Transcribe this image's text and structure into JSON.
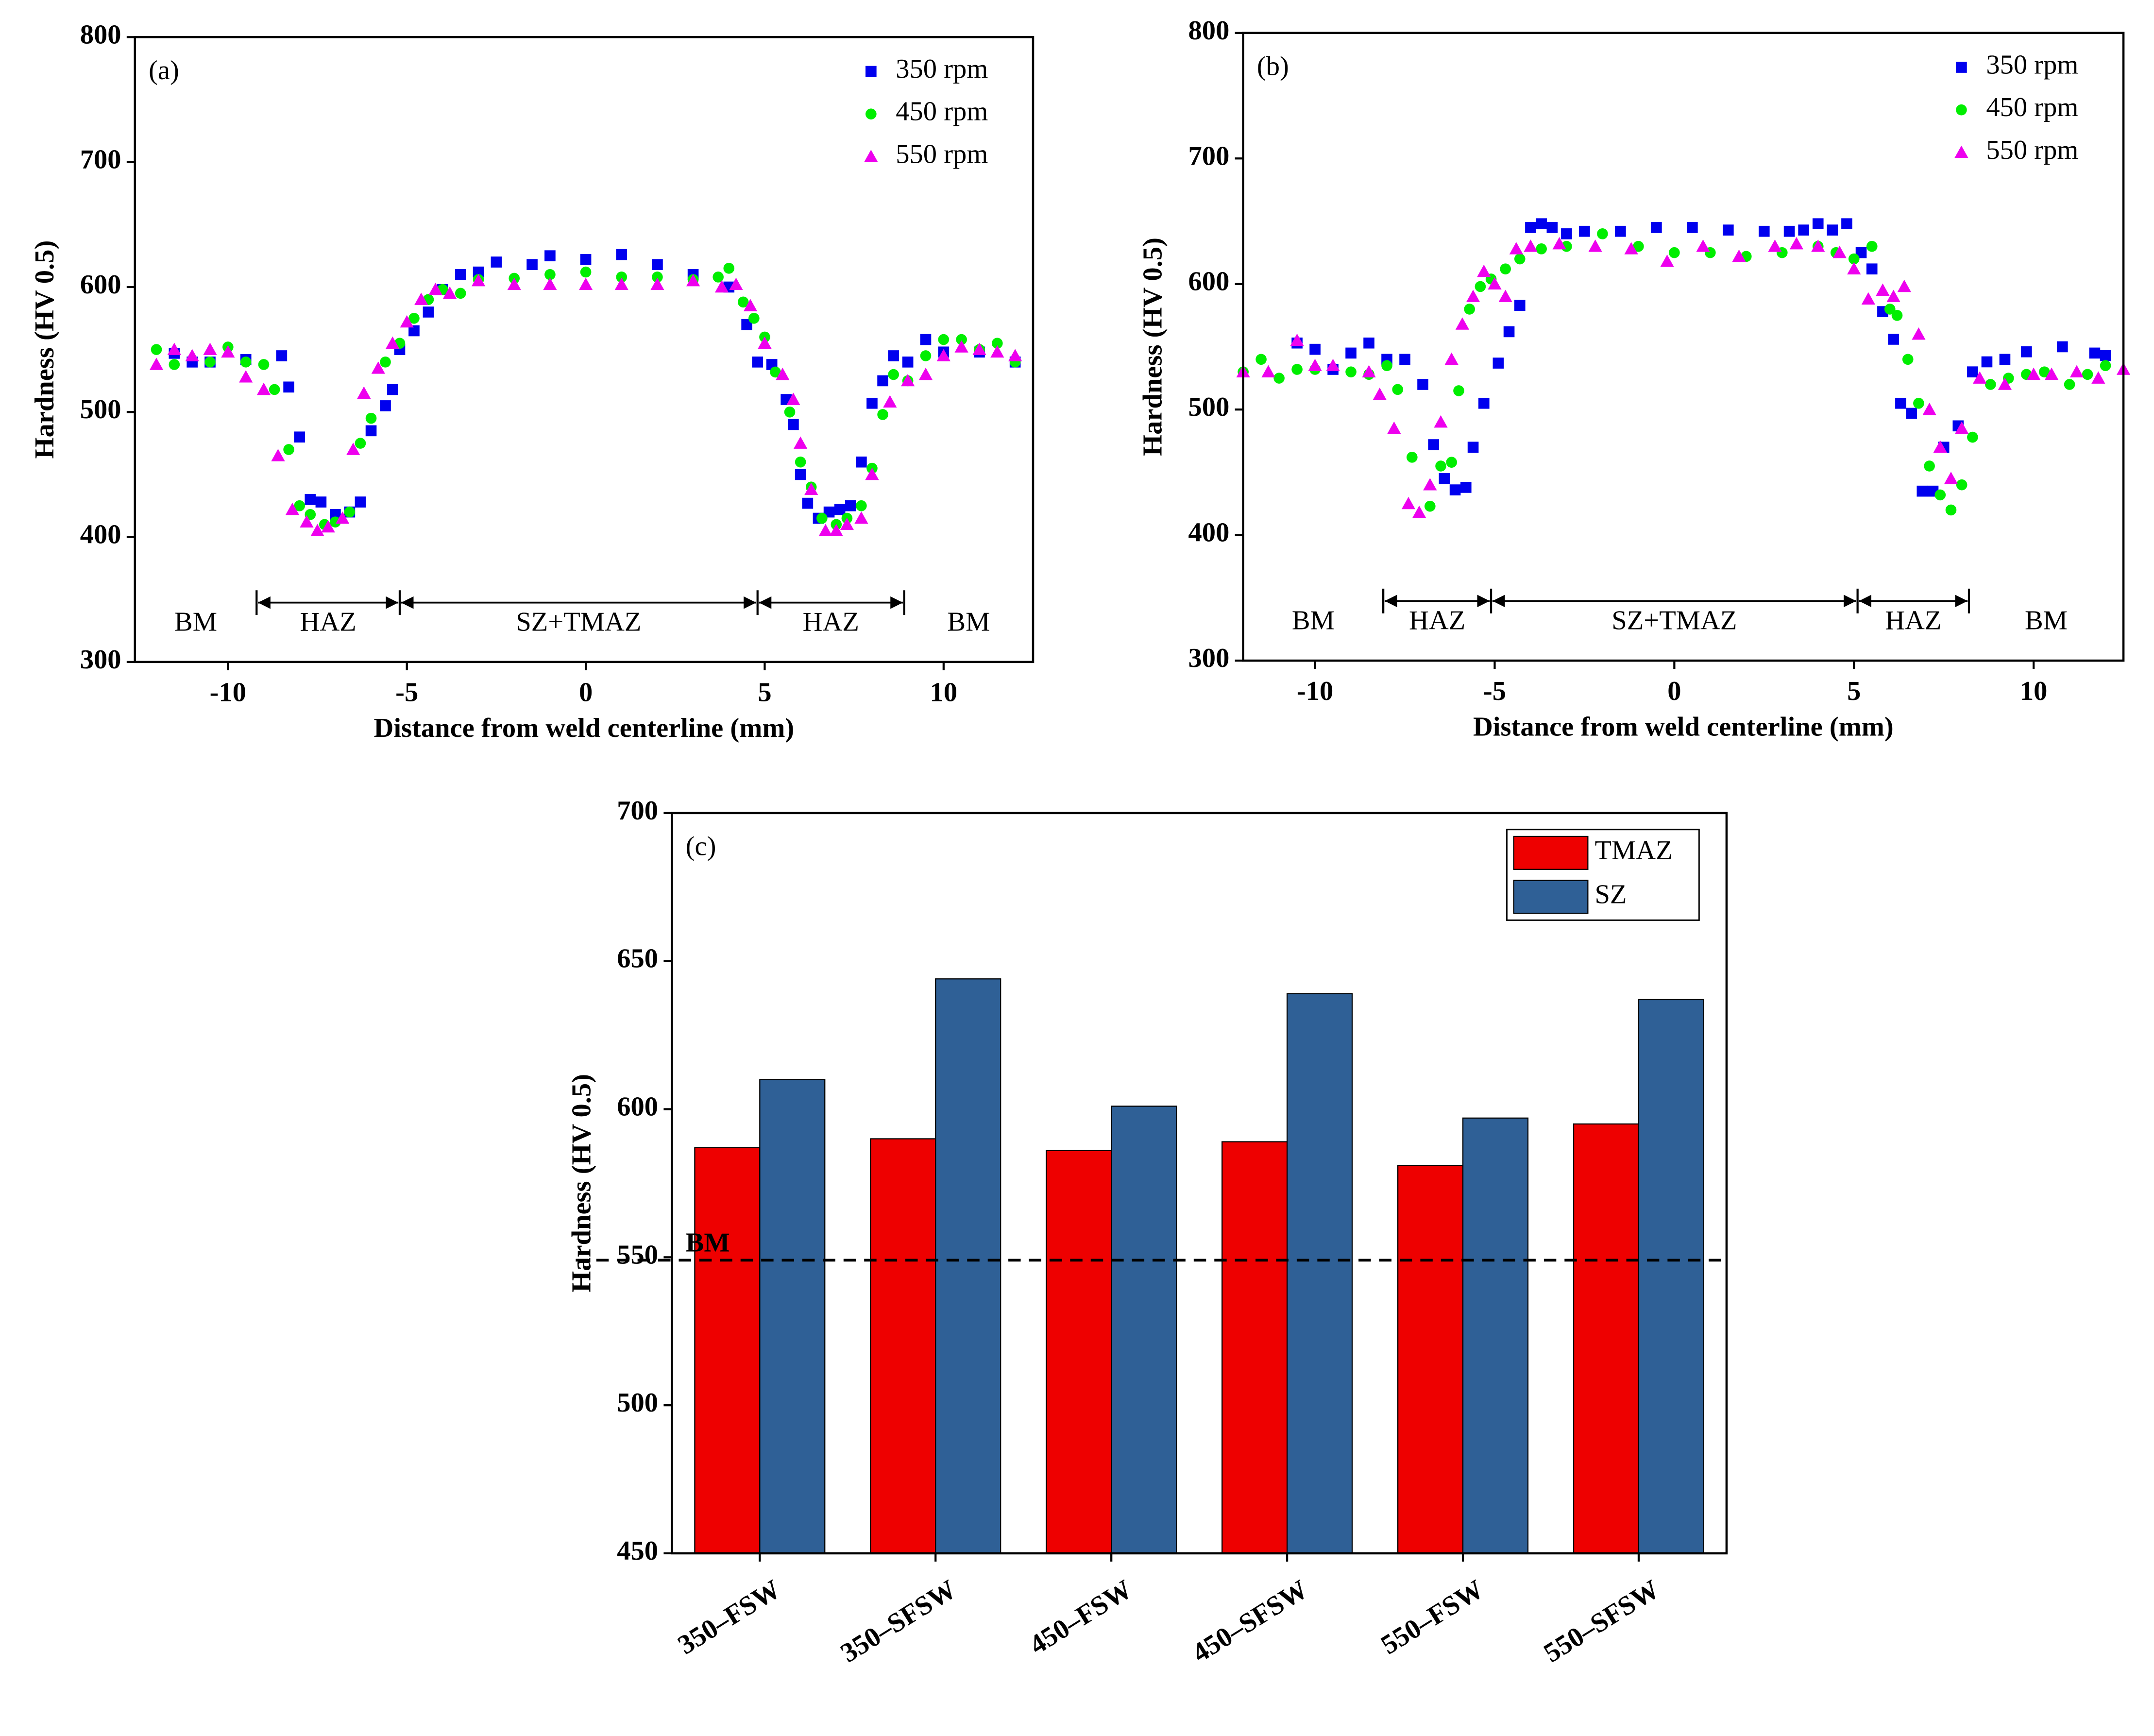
{
  "chart_data": [
    {
      "type": "scatter",
      "panel_label": "(a)",
      "x_label": "Distance from weld centerline (mm)",
      "y_label": "Hardness (HV 0.5)",
      "xlim": [
        -12.6,
        12.5
      ],
      "xticks": [
        -10,
        -5,
        0,
        5,
        10
      ],
      "ylim": [
        300,
        800
      ],
      "yticks": [
        300,
        400,
        500,
        600,
        700,
        800
      ],
      "legend": "top-right",
      "zones": {
        "labels": [
          "BM",
          "HAZ",
          "SZ+TMAZ",
          "HAZ",
          "BM"
        ],
        "boundaries": [
          -9.2,
          -5.2,
          4.8,
          8.9
        ]
      },
      "series": [
        {
          "name": "350 rpm",
          "color": "#0000ee",
          "marker": "square",
          "x": [
            -11.5,
            -11,
            -10.5,
            -9.5,
            -8.5,
            -8.3,
            -8,
            -7.7,
            -7.4,
            -7,
            -6.6,
            -6.3,
            -6,
            -5.6,
            -5.4,
            -5.2,
            -4.8,
            -4.4,
            -4,
            -3.5,
            -3,
            -2.5,
            -1.5,
            -1,
            0,
            1,
            2,
            3,
            4,
            4.5,
            4.8,
            5.2,
            5.6,
            5.8,
            6,
            6.2,
            6.5,
            6.8,
            7.1,
            7.4,
            7.7,
            8,
            8.3,
            8.6,
            9,
            9.5,
            10,
            11,
            12
          ],
          "values": [
            547,
            540,
            540,
            542,
            545,
            520,
            480,
            430,
            428,
            418,
            420,
            428,
            485,
            505,
            518,
            550,
            565,
            580,
            598,
            610,
            612,
            620,
            618,
            625,
            622,
            626,
            618,
            610,
            600,
            570,
            540,
            538,
            510,
            490,
            450,
            427,
            415,
            420,
            422,
            425,
            460,
            507,
            525,
            545,
            540,
            558,
            548,
            548,
            540
          ]
        },
        {
          "name": "450 rpm",
          "color": "#00ee00",
          "marker": "circle",
          "x": [
            -12,
            -11.5,
            -10.5,
            -10,
            -9.5,
            -9,
            -8.7,
            -8.3,
            -8,
            -7.7,
            -7.3,
            -7,
            -6.6,
            -6.3,
            -6,
            -5.6,
            -5.2,
            -4.8,
            -4.4,
            -4,
            -3.5,
            -3,
            -2,
            -1,
            0,
            1,
            2,
            3,
            3.7,
            4,
            4.4,
            4.7,
            5,
            5.3,
            5.7,
            6,
            6.3,
            6.6,
            7,
            7.3,
            7.7,
            8,
            8.3,
            8.6,
            9,
            9.5,
            10,
            10.5,
            11,
            11.5,
            12
          ],
          "values": [
            550,
            538,
            540,
            552,
            540,
            538,
            518,
            470,
            425,
            418,
            410,
            412,
            420,
            475,
            495,
            540,
            555,
            575,
            590,
            598,
            595,
            606,
            607,
            610,
            612,
            608,
            608,
            606,
            608,
            615,
            588,
            575,
            560,
            532,
            500,
            460,
            440,
            415,
            410,
            415,
            425,
            455,
            498,
            530,
            525,
            545,
            558,
            558,
            550,
            555,
            540
          ]
        },
        {
          "name": "550 rpm",
          "color": "#ee00ee",
          "marker": "triangle",
          "x": [
            -12,
            -11.5,
            -11,
            -10.5,
            -10,
            -9.5,
            -9,
            -8.6,
            -8.2,
            -7.8,
            -7.5,
            -7.2,
            -6.8,
            -6.5,
            -6.2,
            -5.8,
            -5.4,
            -5,
            -4.6,
            -4.2,
            -3.8,
            -3,
            -2,
            -1,
            0,
            1,
            2,
            3,
            3.8,
            4.2,
            4.6,
            5,
            5.5,
            5.8,
            6,
            6.3,
            6.7,
            7,
            7.3,
            7.7,
            8,
            8.5,
            9,
            9.5,
            10,
            10.5,
            11,
            11.5,
            12
          ],
          "values": [
            538,
            550,
            545,
            550,
            548,
            528,
            518,
            465,
            422,
            412,
            405,
            408,
            415,
            470,
            515,
            535,
            555,
            572,
            590,
            598,
            595,
            605,
            602,
            602,
            602,
            602,
            602,
            605,
            600,
            602,
            585,
            555,
            530,
            510,
            475,
            438,
            405,
            405,
            410,
            415,
            450,
            508,
            525,
            530,
            545,
            552,
            550,
            548,
            545
          ]
        }
      ]
    },
    {
      "type": "scatter",
      "panel_label": "(b)",
      "x_label": "Distance from weld centerline (mm)",
      "y_label": "Hardness (HV 0.5)",
      "xlim": [
        -12,
        12.5
      ],
      "xticks": [
        -10,
        -5,
        0,
        5,
        10
      ],
      "ylim": [
        300,
        800
      ],
      "yticks": [
        300,
        400,
        500,
        600,
        700,
        800
      ],
      "legend": "top-right",
      "zones": {
        "labels": [
          "BM",
          "HAZ",
          "SZ+TMAZ",
          "HAZ",
          "BM"
        ],
        "boundaries": [
          -8.1,
          -5.1,
          5.1,
          8.2
        ]
      },
      "series": [
        {
          "name": "350 rpm",
          "color": "#0000ee",
          "marker": "square",
          "x": [
            -10.5,
            -10,
            -9.5,
            -9,
            -8.5,
            -8,
            -7.5,
            -7,
            -6.7,
            -6.4,
            -6.1,
            -5.8,
            -5.6,
            -5.3,
            -4.9,
            -4.6,
            -4.3,
            -4,
            -3.7,
            -3.4,
            -3,
            -2.5,
            -1.5,
            -0.5,
            0.5,
            1.5,
            2.5,
            3.2,
            3.6,
            4,
            4.4,
            4.8,
            5.2,
            5.5,
            5.8,
            6.1,
            6.3,
            6.6,
            6.9,
            7.2,
            7.5,
            7.9,
            8.3,
            8.7,
            9.2,
            9.8,
            10.8,
            11.7,
            12
          ],
          "values": [
            553,
            548,
            532,
            545,
            553,
            540,
            540,
            520,
            472,
            445,
            436,
            438,
            470,
            505,
            537,
            562,
            583,
            645,
            648,
            645,
            640,
            642,
            642,
            645,
            645,
            643,
            642,
            642,
            643,
            648,
            643,
            648,
            625,
            612,
            578,
            556,
            505,
            497,
            435,
            435,
            470,
            487,
            530,
            538,
            540,
            546,
            550,
            545,
            543
          ]
        },
        {
          "name": "450 rpm",
          "color": "#00ee00",
          "marker": "circle",
          "x": [
            -12,
            -11.5,
            -11,
            -10.5,
            -10,
            -9,
            -8.5,
            -8,
            -7.7,
            -7.3,
            -6.8,
            -6.5,
            -6.2,
            -6,
            -5.7,
            -5.4,
            -5.1,
            -4.7,
            -4.3,
            -3.7,
            -3,
            -2,
            -1,
            0,
            1,
            2,
            3,
            4,
            4.5,
            5,
            5.5,
            6,
            6.2,
            6.5,
            6.8,
            7.1,
            7.4,
            7.7,
            8,
            8.3,
            8.8,
            9.3,
            9.8,
            10.3,
            11,
            11.5,
            12
          ],
          "values": [
            530,
            540,
            525,
            532,
            532,
            530,
            528,
            535,
            516,
            462,
            423,
            455,
            458,
            515,
            580,
            598,
            604,
            612,
            620,
            628,
            630,
            640,
            630,
            625,
            625,
            622,
            625,
            630,
            625,
            620,
            630,
            580,
            575,
            540,
            505,
            455,
            432,
            420,
            440,
            478,
            520,
            525,
            528,
            530,
            520,
            528,
            535
          ]
        },
        {
          "name": "550 rpm",
          "color": "#ee00ee",
          "marker": "triangle",
          "x": [
            -12,
            -11.3,
            -10.5,
            -10,
            -9.5,
            -8.5,
            -8.2,
            -7.8,
            -7.4,
            -7.1,
            -6.8,
            -6.5,
            -6.2,
            -5.9,
            -5.6,
            -5.3,
            -5,
            -4.7,
            -4.4,
            -4,
            -3.2,
            -2.2,
            -1.2,
            -0.2,
            0.8,
            1.8,
            2.8,
            3.4,
            4,
            4.6,
            5,
            5.4,
            5.8,
            6.1,
            6.4,
            6.8,
            7.1,
            7.4,
            7.7,
            8,
            8.5,
            9.2,
            10,
            10.5,
            11.2,
            11.8,
            12.5
          ],
          "values": [
            530,
            530,
            555,
            535,
            535,
            530,
            512,
            485,
            425,
            418,
            440,
            490,
            540,
            568,
            590,
            610,
            600,
            590,
            628,
            630,
            632,
            630,
            628,
            618,
            630,
            622,
            630,
            632,
            630,
            625,
            612,
            588,
            595,
            590,
            598,
            560,
            500,
            470,
            445,
            485,
            525,
            520,
            528,
            528,
            530,
            525,
            532
          ]
        }
      ]
    },
    {
      "type": "bar",
      "panel_label": "(c)",
      "y_label": "Hardness (HV 0.5)",
      "categories": [
        "350–FSW",
        "350–SFSW",
        "450–FSW",
        "450–SFSW",
        "550–FSW",
        "550–SFSW"
      ],
      "ylim": [
        450,
        700
      ],
      "yticks": [
        450,
        500,
        550,
        600,
        650,
        700
      ],
      "legend": "top-right",
      "reference_line": {
        "label": "BM",
        "value": 549
      },
      "series": [
        {
          "name": "TMAZ",
          "color": "#ee0000",
          "values": [
            587,
            590,
            586,
            589,
            581,
            595
          ]
        },
        {
          "name": "SZ",
          "color": "#2f6096",
          "values": [
            610,
            644,
            601,
            639,
            597,
            637
          ]
        }
      ]
    }
  ]
}
